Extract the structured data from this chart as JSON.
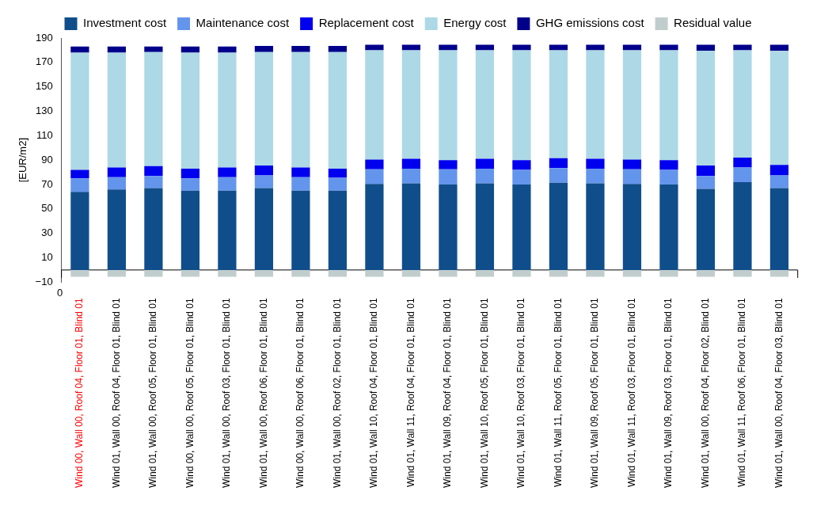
{
  "chart_data": {
    "type": "bar",
    "stacked": true,
    "ylabel": "[EUR/m2]",
    "annotations": [
      "0"
    ],
    "categories": [
      "Wind 00, Wall 00, Roof 04, Floor 01, Blind 01",
      "Wind 01, Wall 00, Roof 04, Floor 01, Blind 01",
      "Wind 01, Wall 00, Roof 05, Floor 01, Blind 01",
      "Wind 00, Wall 00, Roof 05, Floor 01, Blind 01",
      "Wind 01, Wall 00, Roof 03, Floor 01, Blind 01",
      "Wind 01, Wall 00, Roof 06, Floor 01, Blind 01",
      "Wind 00, Wall 00, Roof 06, Floor 01, Blind 01",
      "Wind 01, Wall 00, Roof 02, Floor 01, Blind 01",
      "Wind 01, Wall 10, Roof 04, Floor 01, Blind 01",
      "Wind 01, Wall 11, Roof 04, Floor 01, Blind 01",
      "Wind 01, Wall 09, Roof 04, Floor 01, Blind 01",
      "Wind 01, Wall 10, Roof 05, Floor 01, Blind 01",
      "Wind 01, Wall 10, Roof 03, Floor 01, Blind 01",
      "Wind 01, Wall 11, Roof 05, Floor 01, Blind 01",
      "Wind 01, Wall 09, Roof 05, Floor 01, Blind 01",
      "Wind 01, Wall 11, Roof 03, Floor 01, Blind 01",
      "Wind 01, Wall 09, Roof 03, Floor 01, Blind 01",
      "Wind 01, Wall 00, Roof 04, Floor 02, Blind 01",
      "Wind 01, Wall 11, Roof 06, Floor 01, Blind 01",
      "Wind 01, Wall 00, Roof 04, Floor 03, Blind 01"
    ],
    "series": [
      {
        "name": "Investment cost",
        "color": "#104e8b",
        "values": [
          64,
          66,
          67,
          65,
          65,
          67,
          65,
          65,
          70.5,
          71,
          70,
          71,
          70,
          71.5,
          71,
          70.5,
          70,
          66.5,
          72,
          67
        ]
      },
      {
        "name": "Maintenance cost",
        "color": "#6495ed",
        "values": [
          11,
          10,
          10,
          10,
          11,
          10.5,
          11,
          10.5,
          12,
          12,
          12.5,
          12,
          12,
          12,
          12,
          12,
          12,
          10.5,
          12,
          10.5
        ]
      },
      {
        "name": "Replacement cost",
        "color": "#0000ee",
        "values": [
          7,
          8,
          8,
          8,
          8,
          8,
          8,
          7.5,
          8,
          8,
          7.5,
          8,
          8,
          8,
          8,
          8,
          8,
          8.5,
          8,
          8.5
        ]
      },
      {
        "name": "Energy cost",
        "color": "#add8e6",
        "values": [
          96,
          94,
          93.5,
          95,
          94,
          93,
          94.5,
          95.5,
          89.5,
          89,
          90,
          89,
          90,
          88.5,
          89,
          89.5,
          90,
          94,
          88,
          93.5
        ]
      },
      {
        "name": "GHG emissions cost",
        "color": "#00008b",
        "values": [
          5,
          5,
          4.5,
          5,
          5,
          5,
          5,
          5,
          4.5,
          4.5,
          4.5,
          4.5,
          4.5,
          4.5,
          4.5,
          4.5,
          4.5,
          5,
          4.5,
          5
        ]
      },
      {
        "name": "Residual value",
        "color": "#c1cdcd",
        "values": [
          -5.5,
          -5.5,
          -5.5,
          -5.5,
          -5.5,
          -5.5,
          -5.5,
          -5.5,
          -5.5,
          -5.5,
          -5.5,
          -5.5,
          -5.5,
          -5.5,
          -5.5,
          -5.5,
          -5.5,
          -5.5,
          -5.5,
          -5.5
        ]
      }
    ],
    "ylim": [
      -10,
      190
    ],
    "yticks": [
      -10,
      10,
      30,
      50,
      70,
      90,
      110,
      130,
      150,
      170,
      190
    ],
    "ref_lines": [
      {
        "axis": "y",
        "value": 0,
        "color": "#000000"
      }
    ],
    "grid": false,
    "legend": "top"
  }
}
